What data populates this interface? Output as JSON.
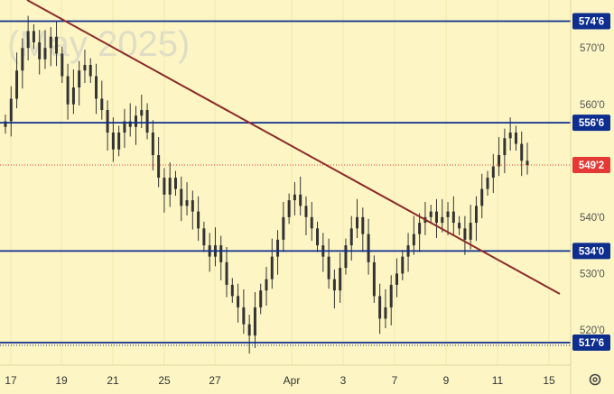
{
  "chart_data": {
    "type": "candlestick",
    "watermark": "(May 2025)",
    "x_tick_labels": [
      "17",
      "19",
      "21",
      "25",
      "27",
      "Apr",
      "3",
      "7",
      "9",
      "11",
      "15"
    ],
    "y_tick_labels": [
      "570'0",
      "560'0",
      "540'0",
      "530'0",
      "520'0"
    ],
    "ylim": [
      515,
      580
    ],
    "horizontal_levels": [
      {
        "value": 574.75,
        "label": "574'6",
        "color": "#0d2d8f"
      },
      {
        "value": 556.75,
        "label": "556'6",
        "color": "#0d2d8f"
      },
      {
        "value": 534.0,
        "label": "534'0",
        "color": "#0d2d8f"
      },
      {
        "value": 517.75,
        "label": "517'6",
        "color": "#0d2d8f"
      }
    ],
    "last_price": {
      "value": 549.25,
      "label": "549'2",
      "color": "#e53935"
    },
    "trendline": {
      "color": "#8b2a2a"
    },
    "closes": [
      557,
      561,
      566,
      570,
      573,
      571,
      568,
      570,
      572,
      569,
      565,
      560,
      563,
      566,
      567,
      565,
      561,
      559,
      555,
      552,
      555,
      557,
      556,
      558,
      559,
      555,
      551,
      547,
      544,
      547,
      545,
      542,
      543,
      541,
      538,
      535,
      533,
      535,
      532,
      528,
      526,
      524,
      521,
      519,
      524,
      527,
      529,
      533,
      536,
      540,
      543,
      544,
      542,
      540,
      538,
      535,
      533,
      529,
      527,
      531,
      535,
      538,
      540,
      537,
      532,
      526,
      522,
      524,
      528,
      530,
      533,
      535,
      537,
      539,
      540,
      541,
      539,
      540,
      541,
      539,
      538,
      536,
      539,
      542,
      545,
      547,
      549,
      551,
      554,
      555,
      553,
      550,
      549.25
    ],
    "candle_colors": {
      "up": "#333333",
      "down": "#333333"
    }
  }
}
